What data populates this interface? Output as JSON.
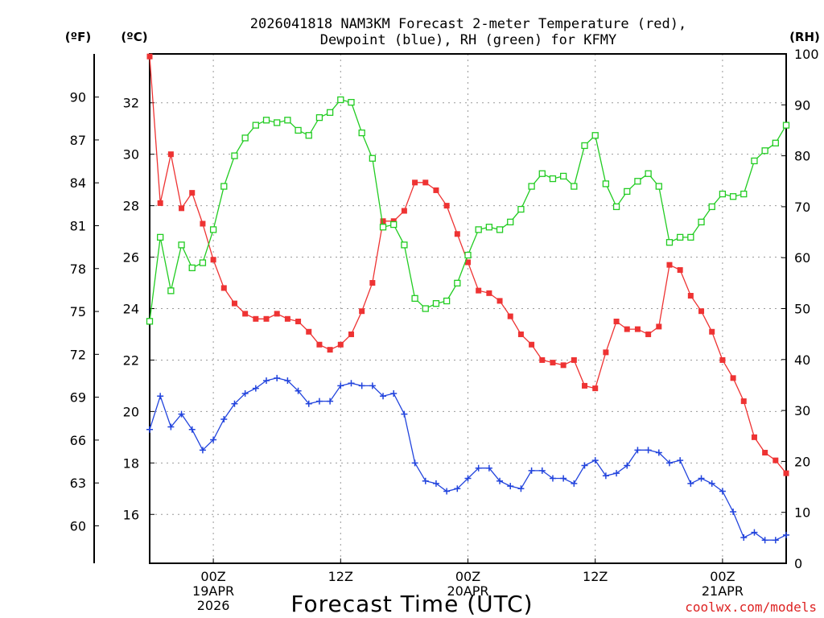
{
  "chart_data": {
    "type": "line",
    "title": "2026041818 NAM3KM Forecast 2-meter Temperature (red),",
    "subtitle": "Dewpoint (blue), RH (green) for KFMY",
    "xlabel": "Forecast Time (UTC)",
    "watermark": "coolwx.com/models",
    "left_outer_axis": {
      "unit": "(ºF)",
      "ticks": [
        "90",
        "87",
        "84",
        "81",
        "78",
        "75",
        "72",
        "69",
        "66",
        "63",
        "60"
      ]
    },
    "left_inner_axis": {
      "unit": "(ºC)",
      "ticks": [
        "32",
        "30",
        "28",
        "26",
        "24",
        "22",
        "20",
        "18",
        "16"
      ],
      "ylim": [
        14.1,
        33.9
      ]
    },
    "right_axis": {
      "unit": "(RH)",
      "ticks": [
        "100",
        "90",
        "80",
        "70",
        "60",
        "50",
        "40",
        "30",
        "20",
        "10",
        "0"
      ],
      "ylim": [
        0,
        100
      ]
    },
    "x_ticks": [
      {
        "hour": 6,
        "lines": [
          "00Z",
          "19APR",
          "2026"
        ]
      },
      {
        "hour": 18,
        "lines": [
          "12Z"
        ]
      },
      {
        "hour": 30,
        "lines": [
          "00Z",
          "20APR"
        ]
      },
      {
        "hour": 42,
        "lines": [
          "12Z"
        ]
      },
      {
        "hour": 54,
        "lines": [
          "00Z",
          "21APR"
        ]
      }
    ],
    "xlim": [
      0,
      60
    ],
    "grid": true,
    "series": [
      {
        "name": "Temperature",
        "axis": "celsius",
        "color": "#ee3333",
        "marker": "filled-square",
        "x": [
          0,
          1,
          2,
          3,
          4,
          5,
          6,
          7,
          8,
          9,
          10,
          11,
          12,
          13,
          14,
          15,
          16,
          17,
          18,
          19,
          20,
          21,
          22,
          23,
          24,
          25,
          26,
          27,
          28,
          29,
          30,
          31,
          32,
          33,
          34,
          35,
          36,
          37,
          38,
          39,
          40,
          41,
          42,
          43,
          44,
          45,
          46,
          47,
          48,
          49,
          50,
          51,
          52,
          53,
          54,
          55,
          56,
          57,
          58,
          59,
          60
        ],
        "values": [
          33.8,
          28.1,
          30.0,
          27.9,
          28.5,
          27.3,
          25.9,
          24.8,
          24.2,
          23.8,
          23.6,
          23.6,
          23.8,
          23.6,
          23.5,
          23.1,
          22.6,
          22.4,
          22.6,
          23.0,
          23.9,
          25.0,
          27.4,
          27.4,
          27.8,
          28.9,
          28.9,
          28.6,
          28.0,
          26.9,
          25.8,
          24.7,
          24.6,
          24.3,
          23.7,
          23.0,
          22.6,
          22.0,
          21.9,
          21.8,
          22.0,
          21.0,
          20.9,
          22.3,
          23.5,
          23.2,
          23.2,
          23.0,
          23.3,
          25.7,
          25.5,
          24.5,
          23.9,
          23.1,
          22.0,
          21.3,
          20.4,
          19.0,
          18.4,
          18.1,
          17.6
        ]
      },
      {
        "name": "Dewpoint",
        "axis": "celsius",
        "color": "#2244dd",
        "marker": "plus",
        "x": [
          0,
          1,
          2,
          3,
          4,
          5,
          6,
          7,
          8,
          9,
          10,
          11,
          12,
          13,
          14,
          15,
          16,
          17,
          18,
          19,
          20,
          21,
          22,
          23,
          24,
          25,
          26,
          27,
          28,
          29,
          30,
          31,
          32,
          33,
          34,
          35,
          36,
          37,
          38,
          39,
          40,
          41,
          42,
          43,
          44,
          45,
          46,
          47,
          48,
          49,
          50,
          51,
          52,
          53,
          54,
          55,
          56,
          57,
          58,
          59,
          60
        ],
        "values": [
          19.3,
          20.6,
          19.4,
          19.9,
          19.3,
          18.5,
          18.9,
          19.7,
          20.3,
          20.7,
          20.9,
          21.2,
          21.3,
          21.2,
          20.8,
          20.3,
          20.4,
          20.4,
          21.0,
          21.1,
          21.0,
          21.0,
          20.6,
          20.7,
          19.9,
          18.0,
          17.3,
          17.2,
          16.9,
          17.0,
          17.4,
          17.8,
          17.8,
          17.3,
          17.1,
          17.0,
          17.7,
          17.7,
          17.4,
          17.4,
          17.2,
          17.9,
          18.1,
          17.5,
          17.6,
          17.9,
          18.5,
          18.5,
          18.4,
          18.0,
          18.1,
          17.2,
          17.4,
          17.2,
          16.9,
          16.1,
          15.1,
          15.3,
          15.0,
          15.0,
          15.2
        ]
      },
      {
        "name": "RH",
        "axis": "rh",
        "color": "#22cc22",
        "marker": "open-square",
        "x": [
          0,
          1,
          2,
          3,
          4,
          5,
          6,
          7,
          8,
          9,
          10,
          11,
          12,
          13,
          14,
          15,
          16,
          17,
          18,
          19,
          20,
          21,
          22,
          23,
          24,
          25,
          26,
          27,
          28,
          29,
          30,
          31,
          32,
          33,
          34,
          35,
          36,
          37,
          38,
          39,
          40,
          41,
          42,
          43,
          44,
          45,
          46,
          47,
          48,
          49,
          50,
          51,
          52,
          53,
          54,
          55,
          56,
          57,
          58,
          59,
          60
        ],
        "values": [
          47.5,
          64,
          53.5,
          62.5,
          58,
          59,
          65.5,
          74,
          80,
          83.5,
          86,
          87,
          86.5,
          87,
          85,
          84,
          87.5,
          88.5,
          91,
          90.5,
          84.5,
          79.5,
          66,
          66.5,
          62.5,
          52,
          50,
          51,
          51.5,
          55,
          60.5,
          65.5,
          66,
          65.5,
          67,
          69.5,
          74,
          76.5,
          75.5,
          76,
          74,
          82,
          84,
          74.5,
          70,
          73,
          75,
          76.5,
          74,
          63,
          64,
          64,
          67,
          70,
          72.5,
          72,
          72.5,
          79,
          81,
          82.5,
          86
        ]
      }
    ]
  }
}
